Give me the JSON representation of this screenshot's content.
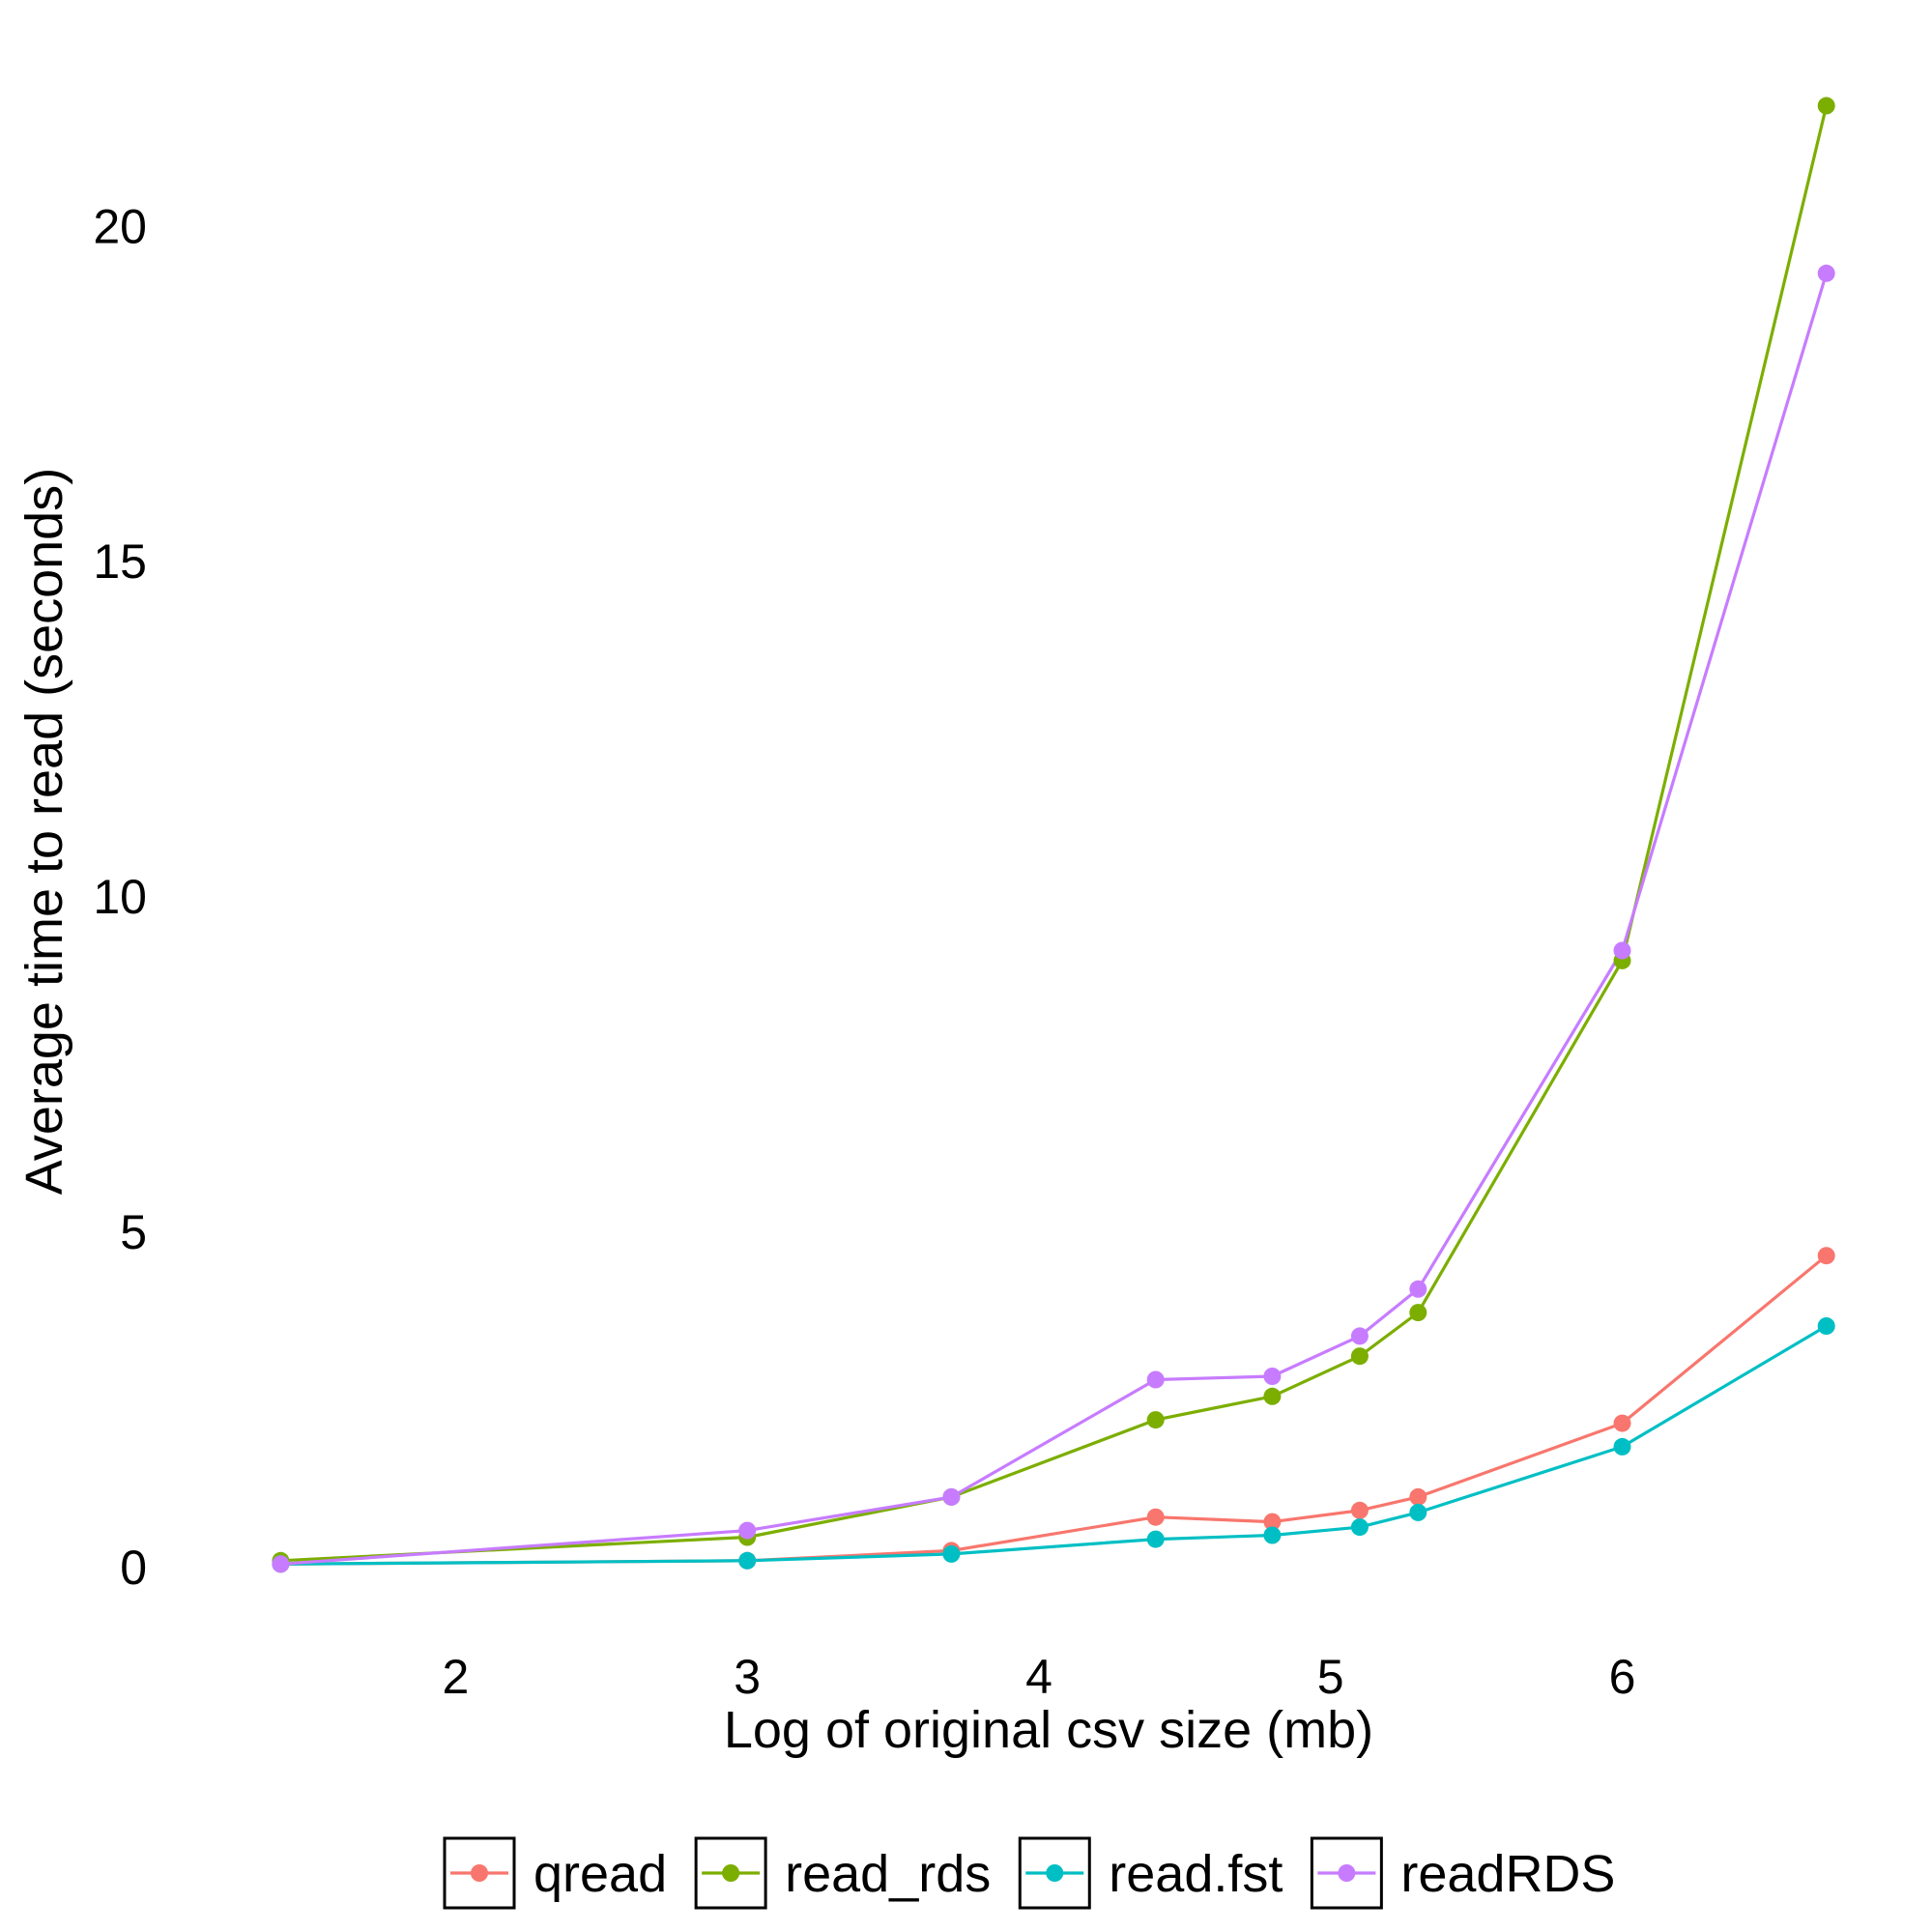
{
  "chart_data": {
    "type": "line",
    "title": "",
    "xlabel": "Log of original csv size (mb)",
    "ylabel": "Average time to read (seconds)",
    "x_ticks": [
      2,
      3,
      4,
      5,
      6
    ],
    "y_ticks": [
      0,
      5,
      10,
      15,
      20
    ],
    "xlim": [
      1.2,
      6.85
    ],
    "ylim": [
      -1.2,
      22.8
    ],
    "grid": false,
    "legend_position": "bottom",
    "x": [
      1.4,
      3.0,
      3.7,
      4.4,
      4.8,
      5.1,
      5.3,
      6.0,
      6.7
    ],
    "series": [
      {
        "name": "qread",
        "color": "#F8766D",
        "values": [
          0.05,
          0.1,
          0.25,
          0.75,
          0.68,
          0.85,
          1.05,
          2.15,
          4.65
        ]
      },
      {
        "name": "read_rds",
        "color": "#7CAE00",
        "values": [
          0.1,
          0.45,
          1.05,
          2.2,
          2.55,
          3.15,
          3.8,
          9.05,
          21.8
        ]
      },
      {
        "name": "read.fst",
        "color": "#00BFC4",
        "values": [
          0.05,
          0.1,
          0.2,
          0.42,
          0.48,
          0.6,
          0.82,
          1.8,
          3.6
        ]
      },
      {
        "name": "readRDS",
        "color": "#C77CFF",
        "values": [
          0.05,
          0.55,
          1.05,
          2.8,
          2.85,
          3.45,
          4.15,
          9.2,
          19.3
        ]
      }
    ]
  }
}
